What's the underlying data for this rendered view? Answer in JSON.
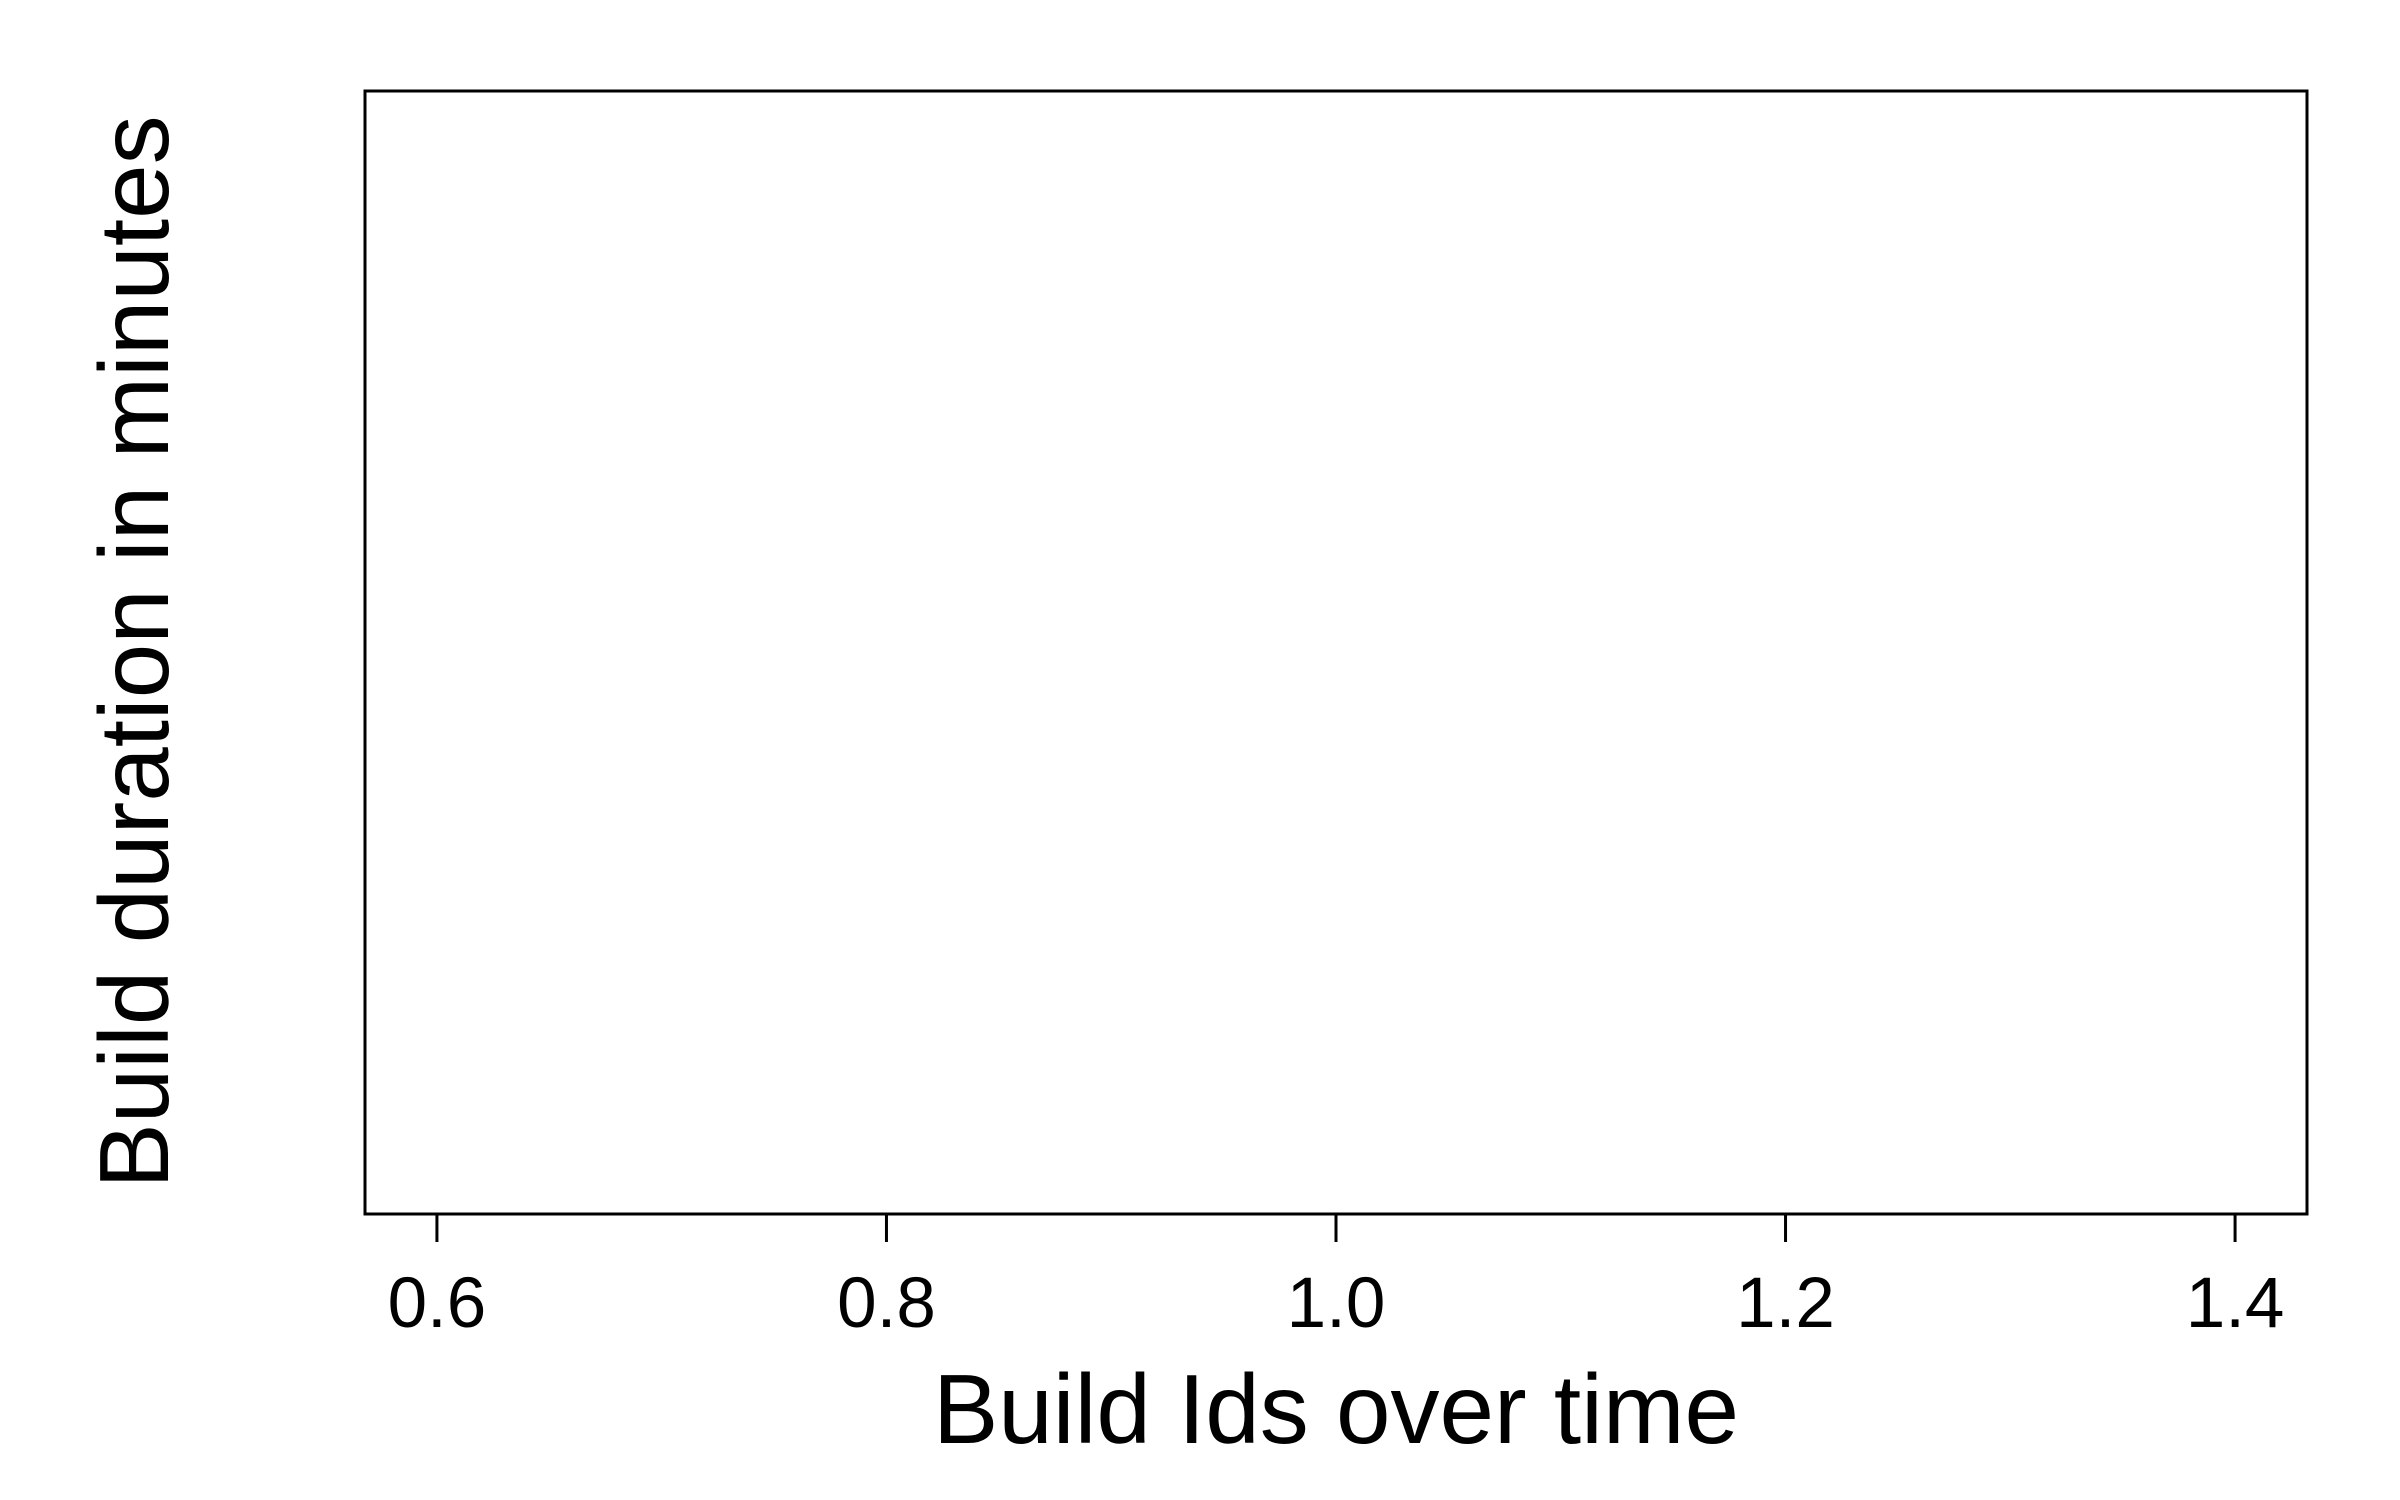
{
  "chart_data": {
    "type": "scatter",
    "title": "",
    "xlabel": "Build Ids over time",
    "ylabel": "Build duration in minutes",
    "xlim": [
      0.568,
      1.432
    ],
    "x_ticks": [
      0.6,
      0.8,
      1.0,
      1.2,
      1.4
    ],
    "x_tick_labels": [
      "0.6",
      "0.8",
      "1.0",
      "1.2",
      "1.4"
    ],
    "y_ticks": [],
    "series": [],
    "grid": false,
    "legend": "none",
    "colors": {
      "axis": "#000000",
      "background": "#ffffff"
    }
  }
}
